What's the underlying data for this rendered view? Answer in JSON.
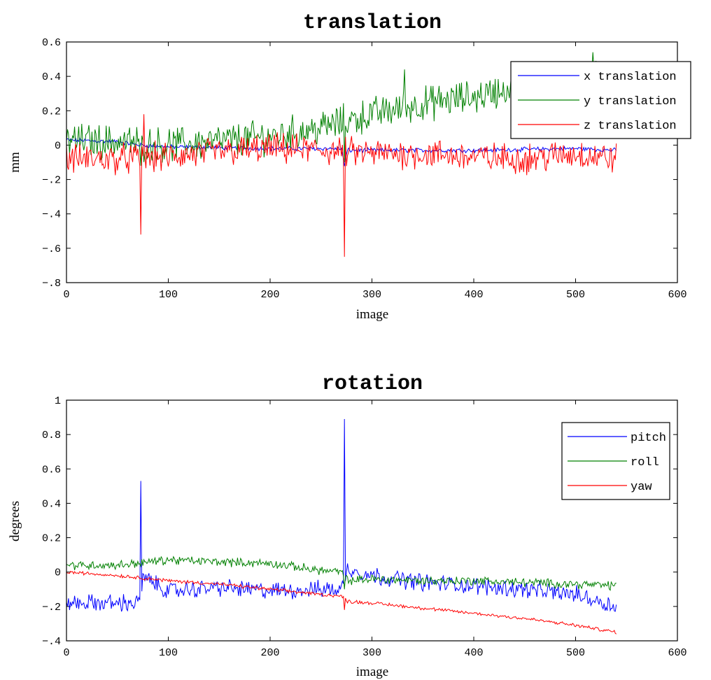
{
  "chart_data": [
    {
      "type": "line",
      "title": "translation",
      "xlabel": "image",
      "ylabel": "mm",
      "xlim": [
        0,
        600
      ],
      "ylim": [
        -0.8,
        0.6
      ],
      "xticks": [
        0,
        100,
        200,
        300,
        400,
        500,
        600
      ],
      "yticks": [
        -0.8,
        -0.6,
        -0.4,
        -0.2,
        0,
        0.2,
        0.4,
        0.6
      ],
      "grid": false,
      "legend_position": "top-right",
      "num_points": 540,
      "series": [
        {
          "name": "x translation",
          "color": "#0000ff",
          "keypoints": [
            [
              0,
              0.03
            ],
            [
              50,
              0.02
            ],
            [
              73,
              0.0
            ],
            [
              100,
              -0.01
            ],
            [
              200,
              -0.02
            ],
            [
              270,
              -0.02
            ],
            [
              273,
              -0.12
            ],
            [
              276,
              -0.03
            ],
            [
              300,
              -0.03
            ],
            [
              400,
              -0.03
            ],
            [
              500,
              -0.02
            ],
            [
              540,
              -0.03
            ]
          ],
          "noise": 0.01,
          "spikes": []
        },
        {
          "name": "y translation",
          "color": "#008000",
          "keypoints": [
            [
              0,
              0.03
            ],
            [
              50,
              0.02
            ],
            [
              100,
              0.0
            ],
            [
              150,
              0.02
            ],
            [
              200,
              0.05
            ],
            [
              250,
              0.1
            ],
            [
              300,
              0.18
            ],
            [
              350,
              0.24
            ],
            [
              400,
              0.28
            ],
            [
              450,
              0.35
            ],
            [
              500,
              0.38
            ],
            [
              540,
              0.4
            ]
          ],
          "noise": 0.08,
          "spikes": [
            [
              73,
              -0.12
            ],
            [
              273,
              -0.1
            ],
            [
              332,
              0.44
            ],
            [
              517,
              0.54
            ]
          ]
        },
        {
          "name": "z translation",
          "color": "#ff0000",
          "keypoints": [
            [
              0,
              -0.08
            ],
            [
              50,
              -0.08
            ],
            [
              100,
              -0.07
            ],
            [
              150,
              -0.04
            ],
            [
              200,
              -0.02
            ],
            [
              250,
              -0.03
            ],
            [
              300,
              -0.05
            ],
            [
              350,
              -0.05
            ],
            [
              400,
              -0.07
            ],
            [
              450,
              -0.08
            ],
            [
              500,
              -0.05
            ],
            [
              540,
              -0.08
            ]
          ],
          "noise": 0.07,
          "spikes": [
            [
              73,
              -0.52
            ],
            [
              273,
              -0.65
            ],
            [
              76,
              0.18
            ]
          ]
        }
      ]
    },
    {
      "type": "line",
      "title": "rotation",
      "xlabel": "image",
      "ylabel": "degrees",
      "xlim": [
        0,
        600
      ],
      "ylim": [
        -0.4,
        1.0
      ],
      "xticks": [
        0,
        100,
        200,
        300,
        400,
        500,
        600
      ],
      "yticks": [
        -0.4,
        -0.2,
        0,
        0.2,
        0.4,
        0.6,
        0.8,
        1
      ],
      "grid": false,
      "legend_position": "top-right",
      "num_points": 540,
      "series": [
        {
          "name": "pitch",
          "color": "#0000ff",
          "keypoints": [
            [
              0,
              -0.18
            ],
            [
              72,
              -0.18
            ],
            [
              75,
              -0.03
            ],
            [
              100,
              -0.11
            ],
            [
              150,
              -0.09
            ],
            [
              200,
              -0.11
            ],
            [
              250,
              -0.1
            ],
            [
              270,
              -0.1
            ],
            [
              276,
              0.02
            ],
            [
              300,
              -0.02
            ],
            [
              350,
              -0.06
            ],
            [
              400,
              -0.08
            ],
            [
              450,
              -0.1
            ],
            [
              500,
              -0.13
            ],
            [
              540,
              -0.2
            ]
          ],
          "noise": 0.04,
          "spikes": [
            [
              73,
              0.53
            ],
            [
              273,
              0.89
            ]
          ]
        },
        {
          "name": "roll",
          "color": "#008000",
          "keypoints": [
            [
              0,
              0.04
            ],
            [
              50,
              0.04
            ],
            [
              100,
              0.07
            ],
            [
              150,
              0.06
            ],
            [
              200,
              0.05
            ],
            [
              250,
              0.01
            ],
            [
              270,
              0.0
            ],
            [
              276,
              -0.05
            ],
            [
              300,
              -0.04
            ],
            [
              350,
              -0.05
            ],
            [
              400,
              -0.05
            ],
            [
              450,
              -0.06
            ],
            [
              500,
              -0.07
            ],
            [
              540,
              -0.08
            ]
          ],
          "noise": 0.02,
          "spikes": [
            [
              273,
              -0.1
            ]
          ]
        },
        {
          "name": "yaw",
          "color": "#ff0000",
          "keypoints": [
            [
              0,
              0.0
            ],
            [
              50,
              -0.02
            ],
            [
              100,
              -0.05
            ],
            [
              150,
              -0.07
            ],
            [
              200,
              -0.1
            ],
            [
              250,
              -0.13
            ],
            [
              270,
              -0.14
            ],
            [
              276,
              -0.17
            ],
            [
              300,
              -0.18
            ],
            [
              350,
              -0.21
            ],
            [
              400,
              -0.24
            ],
            [
              450,
              -0.27
            ],
            [
              500,
              -0.31
            ],
            [
              540,
              -0.35
            ]
          ],
          "noise": 0.008,
          "spikes": [
            [
              273,
              -0.22
            ]
          ]
        }
      ]
    }
  ]
}
